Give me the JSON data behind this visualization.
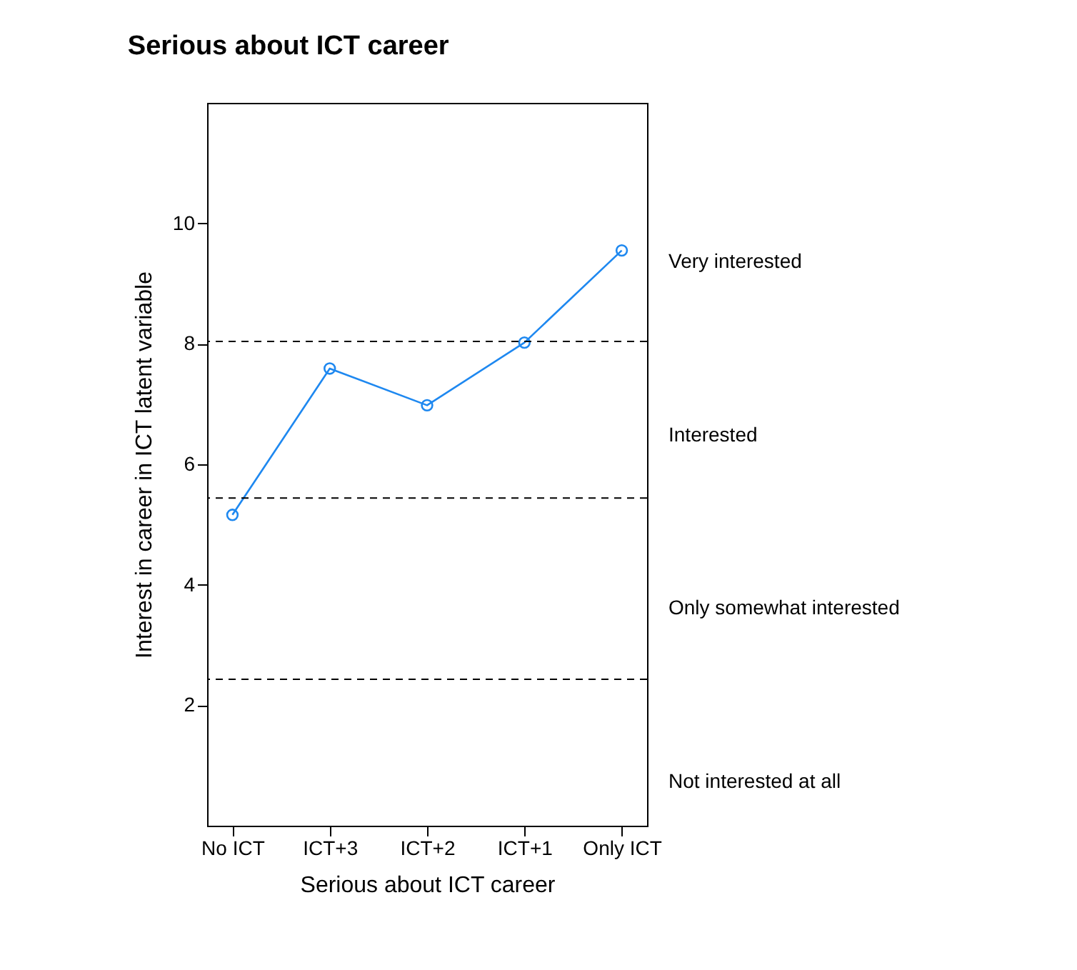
{
  "chart_data": {
    "type": "line",
    "title": "Serious about ICT career",
    "xlabel": "Serious about ICT career",
    "ylabel": "Interest in career in ICT latent variable",
    "categories": [
      "No ICT",
      "ICT+3",
      "ICT+2",
      "ICT+1",
      "Only ICT"
    ],
    "series": [
      {
        "color": "#1e88f0",
        "values": [
          5.16,
          7.59,
          6.98,
          8.02,
          9.55
        ]
      }
    ],
    "ylim": [
      0,
      12
    ],
    "yticks": [
      2,
      4,
      6,
      8,
      10
    ],
    "grid": false,
    "marker": "circle",
    "line_style": "solid",
    "ref_lines": [
      {
        "axis": "y",
        "value": 8.04,
        "line_style": "dashed",
        "color": "#000000"
      },
      {
        "axis": "y",
        "value": 5.44,
        "line_style": "dashed",
        "color": "#000000"
      },
      {
        "axis": "y",
        "value": 2.43,
        "line_style": "dashed",
        "color": "#000000"
      }
    ],
    "annotations": [
      "Very interested",
      "Interested",
      "Only somewhat interested",
      "Not interested at all"
    ]
  }
}
